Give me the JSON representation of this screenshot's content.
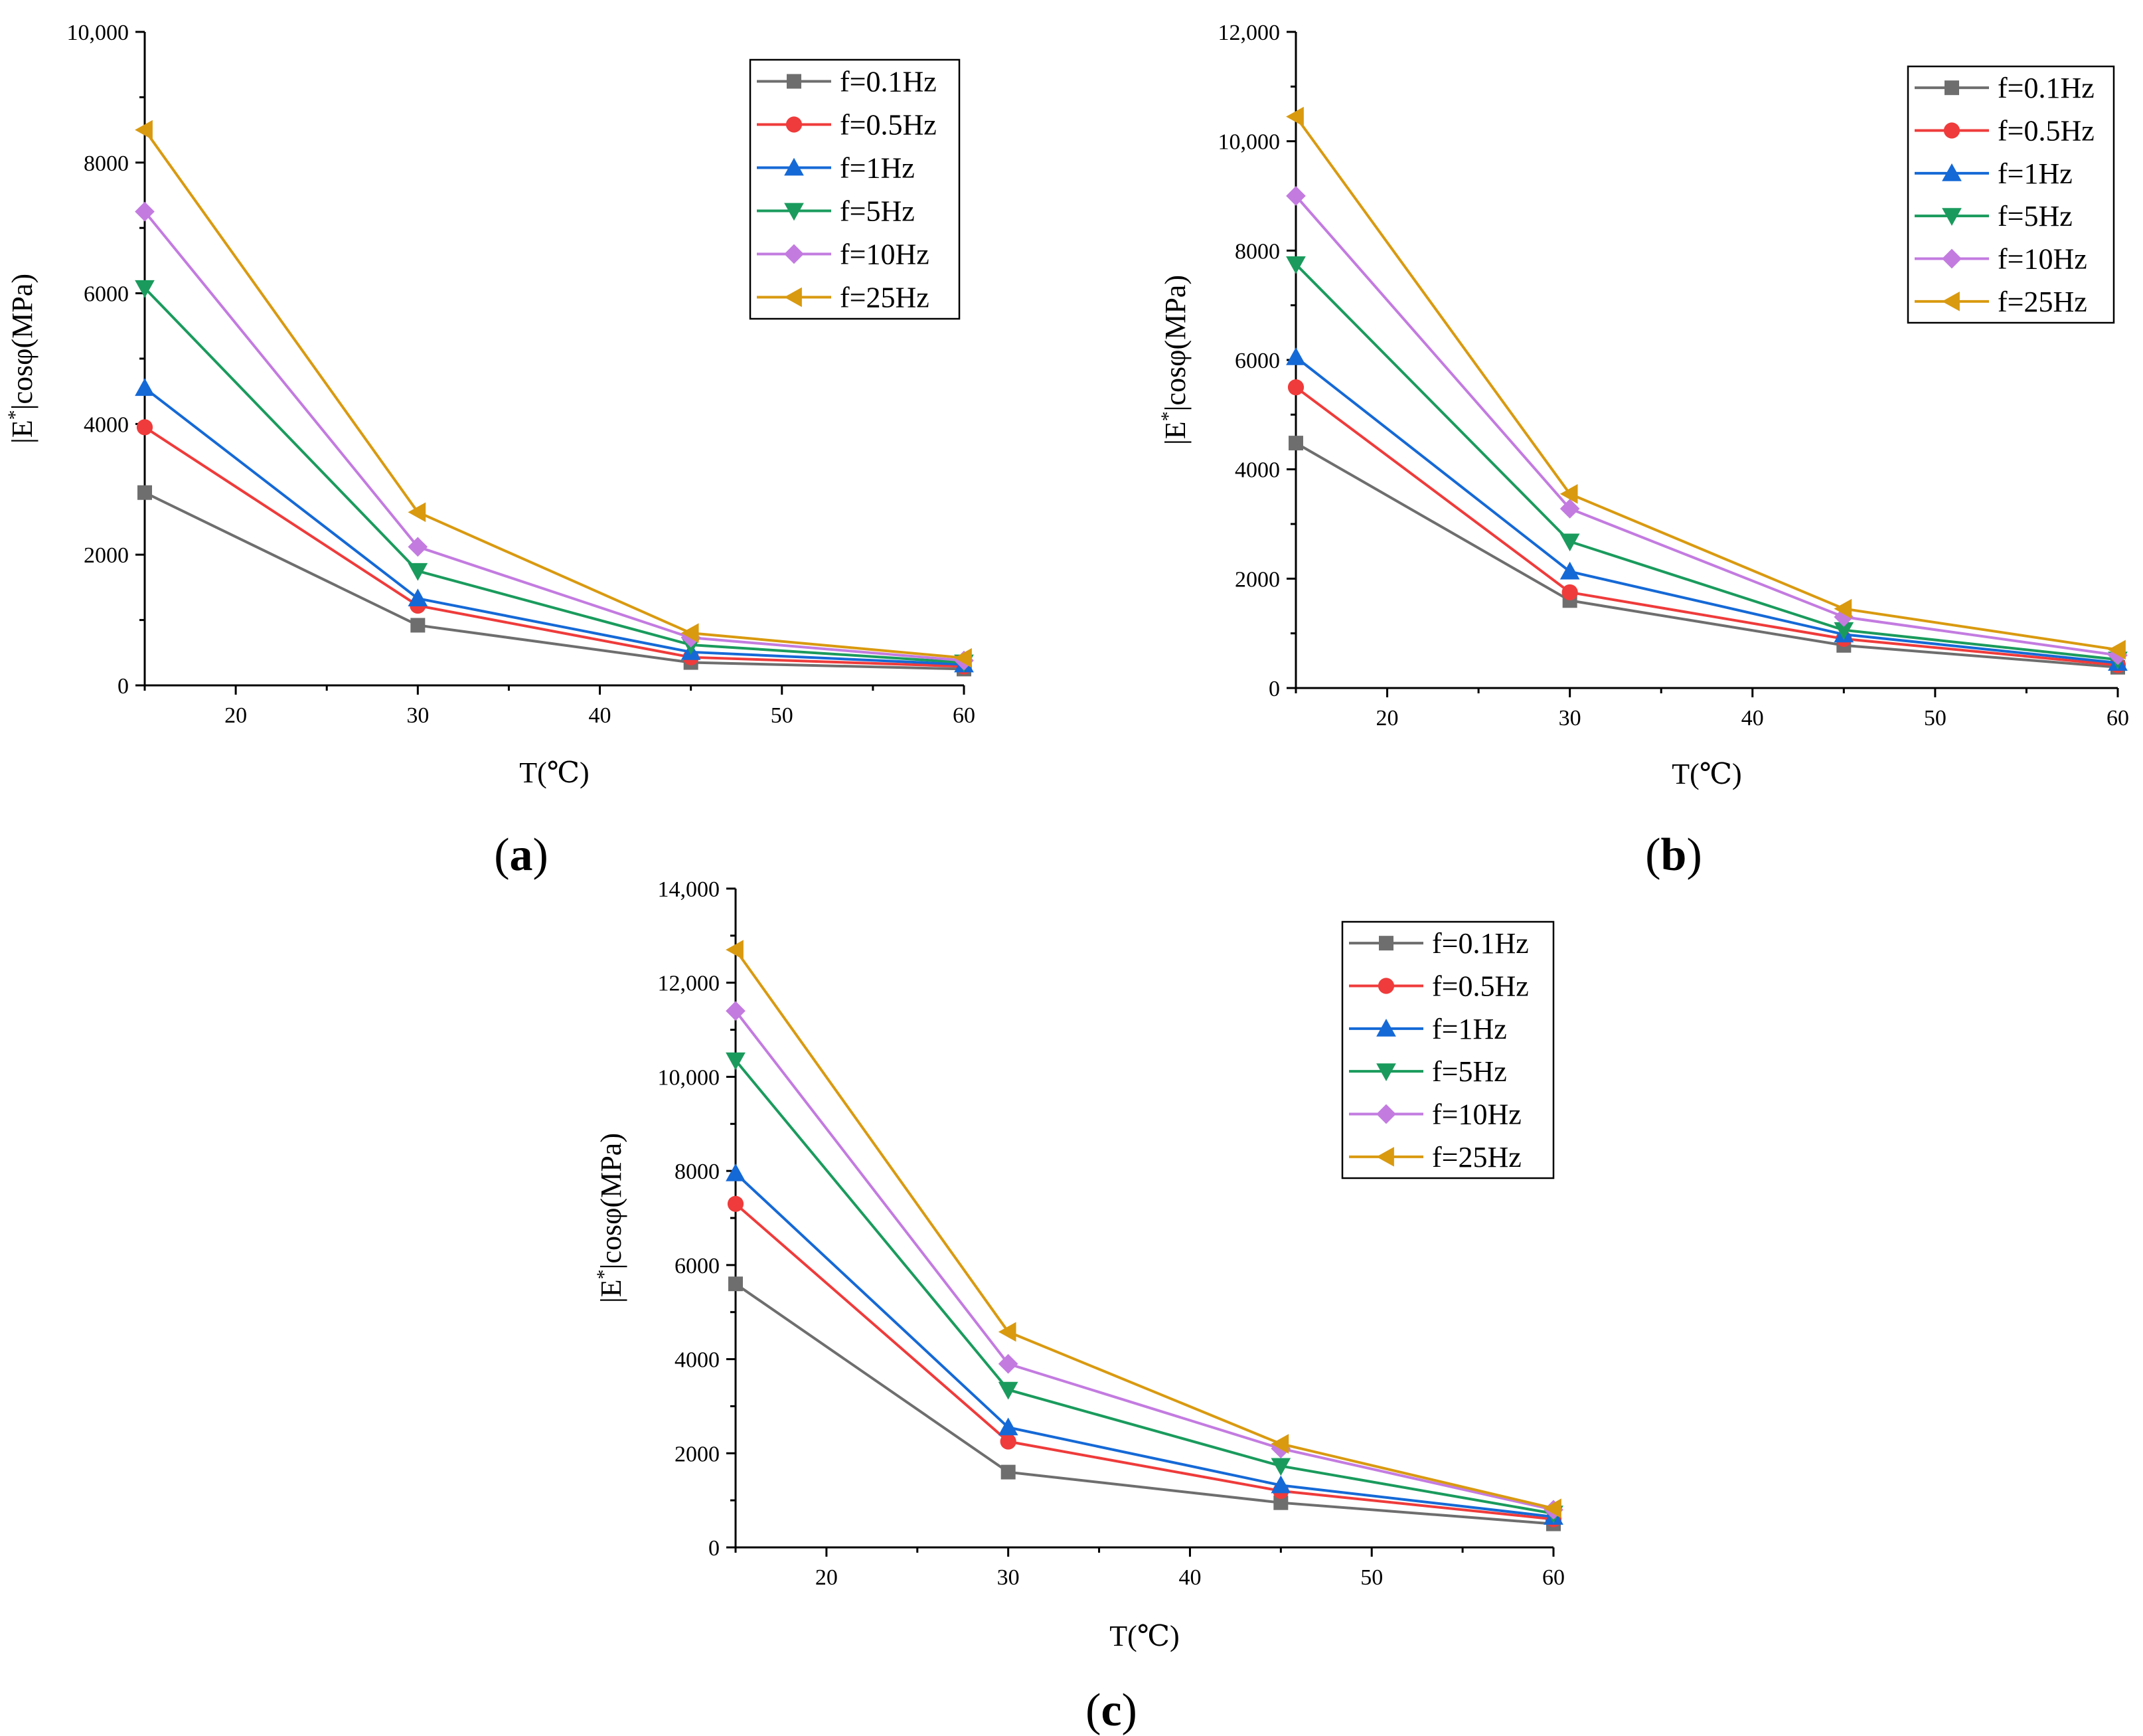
{
  "chart_data": [
    {
      "type": "line",
      "panel_label": "a",
      "xlabel": "T(℃)",
      "ylabel_base": "|E",
      "ylabel_sup": "*",
      "ylabel_rest": "|cosφ(MPa)",
      "xlim": [
        15,
        60
      ],
      "ylim": [
        0,
        10000
      ],
      "xticks": [
        20,
        30,
        40,
        50,
        60
      ],
      "yticks": [
        0,
        2000,
        4000,
        6000,
        8000,
        10000
      ],
      "ytick_labels": [
        "0",
        "2000",
        "4000",
        "6000",
        "8000",
        "10,000"
      ],
      "legend_position": "top-right",
      "x": [
        15,
        30,
        45,
        60
      ],
      "series": [
        {
          "name": "f=0.1Hz",
          "color": "#6e6e6e",
          "marker": "square",
          "values": [
            2950,
            920,
            350,
            250
          ]
        },
        {
          "name": "f=0.5Hz",
          "color": "#ef3b3b",
          "marker": "circle",
          "values": [
            3950,
            1220,
            430,
            290
          ]
        },
        {
          "name": "f=1Hz",
          "color": "#1569d6",
          "marker": "triangle-up",
          "values": [
            4550,
            1330,
            510,
            320
          ]
        },
        {
          "name": "f=5Hz",
          "color": "#1a9b5d",
          "marker": "triangle-down",
          "values": [
            6080,
            1750,
            620,
            350
          ]
        },
        {
          "name": "f=10Hz",
          "color": "#c37be0",
          "marker": "diamond",
          "values": [
            7250,
            2120,
            730,
            380
          ]
        },
        {
          "name": "f=25Hz",
          "color": "#d99a10",
          "marker": "triangle-left",
          "values": [
            8500,
            2650,
            800,
            420
          ]
        }
      ]
    },
    {
      "type": "line",
      "panel_label": "b",
      "xlabel": "T(℃)",
      "ylabel_base": "|E",
      "ylabel_sup": "*",
      "ylabel_rest": "|cosφ(MPa)",
      "xlim": [
        15,
        60
      ],
      "ylim": [
        0,
        12000
      ],
      "xticks": [
        20,
        30,
        40,
        50,
        60
      ],
      "yticks": [
        0,
        2000,
        4000,
        6000,
        8000,
        10000,
        12000
      ],
      "ytick_labels": [
        "0",
        "2000",
        "4000",
        "6000",
        "8000",
        "10,000",
        "12,000"
      ],
      "legend_position": "top-right",
      "x": [
        15,
        30,
        45,
        60
      ],
      "series": [
        {
          "name": "f=0.1Hz",
          "color": "#6e6e6e",
          "marker": "square",
          "values": [
            4480,
            1600,
            780,
            380
          ]
        },
        {
          "name": "f=0.5Hz",
          "color": "#ef3b3b",
          "marker": "circle",
          "values": [
            5500,
            1750,
            900,
            420
          ]
        },
        {
          "name": "f=1Hz",
          "color": "#1569d6",
          "marker": "triangle-up",
          "values": [
            6050,
            2130,
            980,
            460
          ]
        },
        {
          "name": "f=5Hz",
          "color": "#1a9b5d",
          "marker": "triangle-down",
          "values": [
            7750,
            2680,
            1060,
            520
          ]
        },
        {
          "name": "f=10Hz",
          "color": "#c37be0",
          "marker": "diamond",
          "values": [
            9000,
            3280,
            1300,
            600
          ]
        },
        {
          "name": "f=25Hz",
          "color": "#d99a10",
          "marker": "triangle-left",
          "values": [
            10450,
            3550,
            1450,
            700
          ]
        }
      ]
    },
    {
      "type": "line",
      "panel_label": "c",
      "xlabel": "T(℃)",
      "ylabel_base": "|E",
      "ylabel_sup": "*",
      "ylabel_rest": "|cosφ(MPa)",
      "xlim": [
        15,
        60
      ],
      "ylim": [
        0,
        14000
      ],
      "xticks": [
        20,
        30,
        40,
        50,
        60
      ],
      "yticks": [
        0,
        2000,
        4000,
        6000,
        8000,
        10000,
        12000,
        14000
      ],
      "ytick_labels": [
        "0",
        "2000",
        "4000",
        "6000",
        "8000",
        "10,000",
        "12,000",
        "14,000"
      ],
      "legend_position": "top-right",
      "x": [
        15,
        30,
        45,
        60
      ],
      "series": [
        {
          "name": "f=0.1Hz",
          "color": "#6e6e6e",
          "marker": "square",
          "values": [
            5600,
            1600,
            950,
            500
          ]
        },
        {
          "name": "f=0.5Hz",
          "color": "#ef3b3b",
          "marker": "circle",
          "values": [
            7300,
            2250,
            1200,
            600
          ]
        },
        {
          "name": "f=1Hz",
          "color": "#1569d6",
          "marker": "triangle-up",
          "values": [
            7950,
            2550,
            1320,
            650
          ]
        },
        {
          "name": "f=5Hz",
          "color": "#1a9b5d",
          "marker": "triangle-down",
          "values": [
            10350,
            3350,
            1730,
            720
          ]
        },
        {
          "name": "f=10Hz",
          "color": "#c37be0",
          "marker": "diamond",
          "values": [
            11400,
            3900,
            2100,
            800
          ]
        },
        {
          "name": "f=25Hz",
          "color": "#d99a10",
          "marker": "triangle-left",
          "values": [
            12700,
            4580,
            2200,
            830
          ]
        }
      ]
    }
  ]
}
